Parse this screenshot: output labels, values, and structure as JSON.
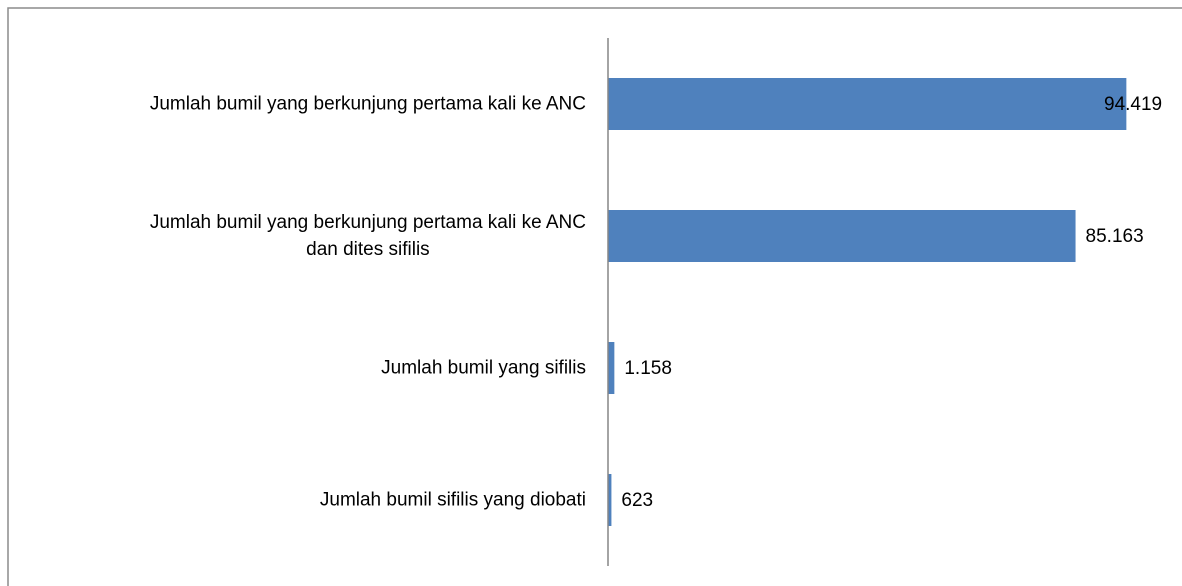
{
  "chart_data": {
    "type": "hbar",
    "categories": [
      "Jumlah bumil yang berkunjung pertama kali ke ANC",
      "Jumlah bumil yang berkunjung pertama kali ke ANC\ndan dites sifilis",
      "Jumlah bumil yang sifilis",
      "Jumlah bumil sifilis yang diobati"
    ],
    "values": [
      94419,
      85163,
      1158,
      623
    ],
    "value_labels": [
      "94.419",
      "85.163",
      "1.158",
      "623"
    ],
    "color": "#4f81bd",
    "xlim": [
      0,
      100000
    ]
  }
}
